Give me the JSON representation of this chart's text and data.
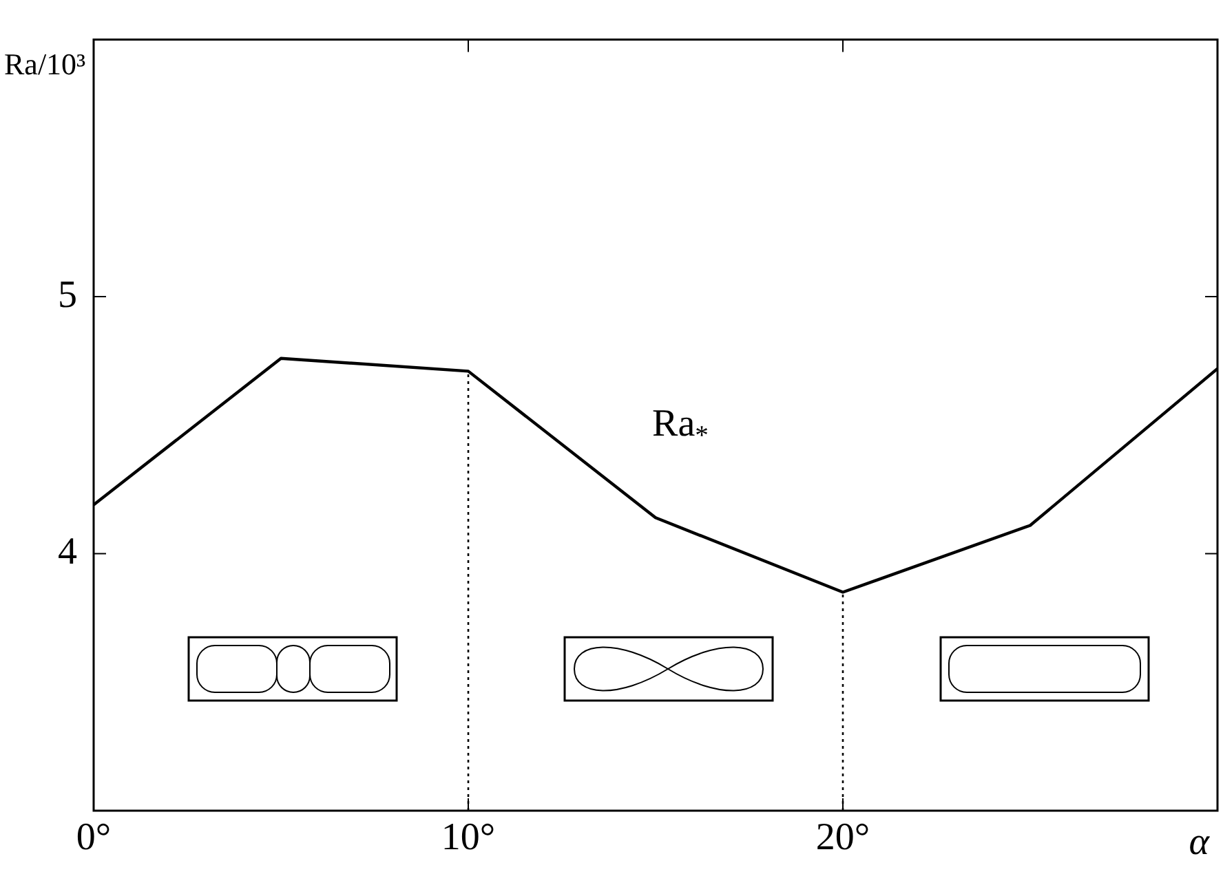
{
  "chart_data": {
    "type": "line",
    "xlabel": "α",
    "ylabel": "Ra/10³",
    "x": [
      0,
      5,
      10,
      15,
      20,
      25,
      30
    ],
    "series": [
      {
        "color": "#000000",
        "values": [
          4.19,
          4.76,
          4.71,
          4.14,
          3.85,
          4.11,
          4.72
        ]
      }
    ],
    "xlim": [
      0,
      30
    ],
    "xticks": [
      {
        "value": 0,
        "label": "0°"
      },
      {
        "value": 10,
        "label": "10°"
      },
      {
        "value": 20,
        "label": "20°"
      },
      {
        "value": 30,
        "label": null
      }
    ],
    "ylim": [
      3,
      6
    ],
    "yticks": [
      4,
      5
    ],
    "ref_lines": [
      {
        "axis": "x",
        "value": 10,
        "color": "#000000",
        "line_style": "dotted"
      },
      {
        "axis": "x",
        "value": 20,
        "color": "#000000",
        "line_style": "dotted"
      }
    ],
    "annotations": [
      "Ra$_{*}$"
    ],
    "grid": false,
    "legend": false,
    "marker": "none",
    "line_style": "solid"
  }
}
